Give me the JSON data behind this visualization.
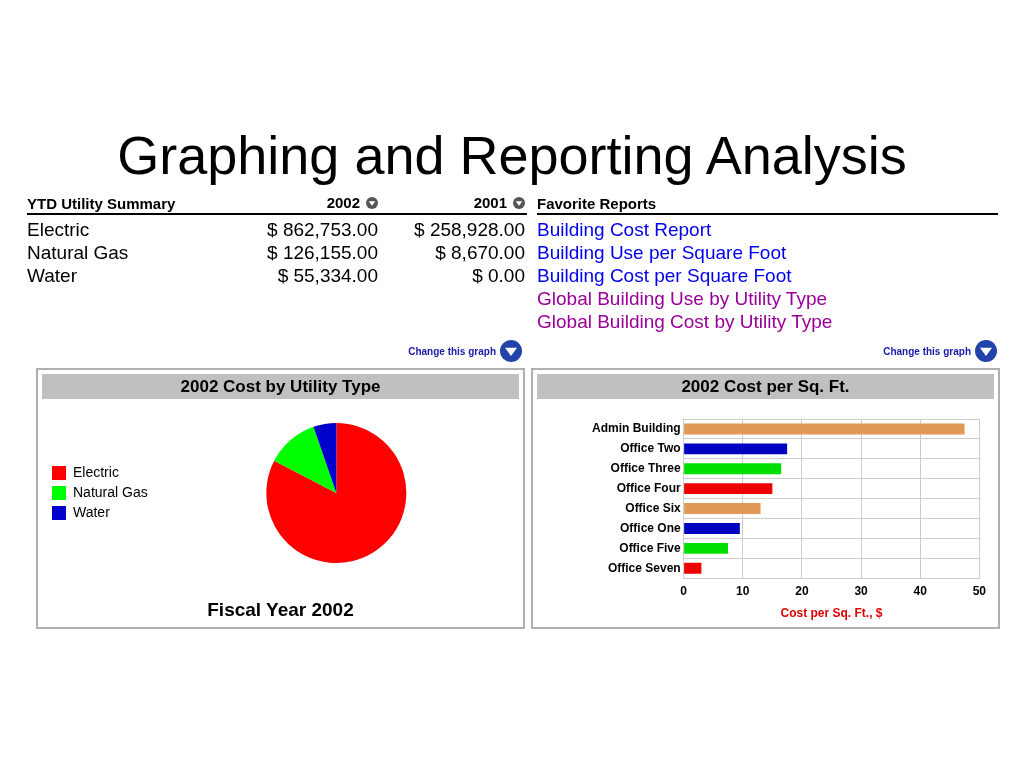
{
  "chart_data": [
    {
      "type": "other",
      "title": "Graphing and Reporting Analysis"
    },
    {
      "type": "other",
      "title": "YTD Utility Summary",
      "categories": [
        "2002",
        "2001"
      ],
      "annotations": [
        "Electric",
        "$ 862,753.00",
        "$ 258,928.00",
        "Natural Gas",
        "$ 126,155.00",
        "$ 8,670.00",
        "Water",
        "$ 55,334.00",
        "$ 0.00"
      ]
    },
    {
      "type": "other",
      "title": "Favorite Reports",
      "categories": [
        "Building Cost Report",
        "Building Use per Square Foot",
        "Building Cost per Square Foot",
        "Global Building Use by Utility Type",
        "Global Building Cost by Utility Type"
      ],
      "colors": [
        "#0000ee",
        "#0000ee",
        "#0000ee",
        "#990099",
        "#990099"
      ]
    },
    {
      "type": "pie",
      "title": "2002 Cost by Utility Type",
      "categories": [
        "Electric",
        "Natural Gas",
        "Water"
      ],
      "values": [
        82.6,
        12.1,
        5.3
      ],
      "colors": [
        "#ff0000",
        "#00ff00",
        "#0000cc"
      ],
      "legend": "left",
      "annotations": [
        "Change this graph",
        "Fiscal Year 2002"
      ]
    },
    {
      "type": "bar",
      "orientation": "horizontal",
      "title": "2002 Cost per Sq. Ft.",
      "xlabel": "Cost per Sq. Ft., $",
      "categories": [
        "Admin Building",
        "Office Two",
        "Office Three",
        "Office Four",
        "Office Six",
        "Office One",
        "Office Five",
        "Office Seven"
      ],
      "values": [
        47.5,
        17.5,
        16.5,
        15,
        13,
        9.5,
        7.5,
        3
      ],
      "colors": [
        "#e09a55",
        "#0000c0",
        "#00e000",
        "#ee0000",
        "#e09a55",
        "#0000c0",
        "#00e000",
        "#ee0000"
      ],
      "xlim": [
        0,
        50
      ],
      "xticks": [
        0,
        10,
        20,
        30,
        40,
        50
      ],
      "grid": true,
      "annotations": [
        "Change this graph"
      ]
    }
  ]
}
